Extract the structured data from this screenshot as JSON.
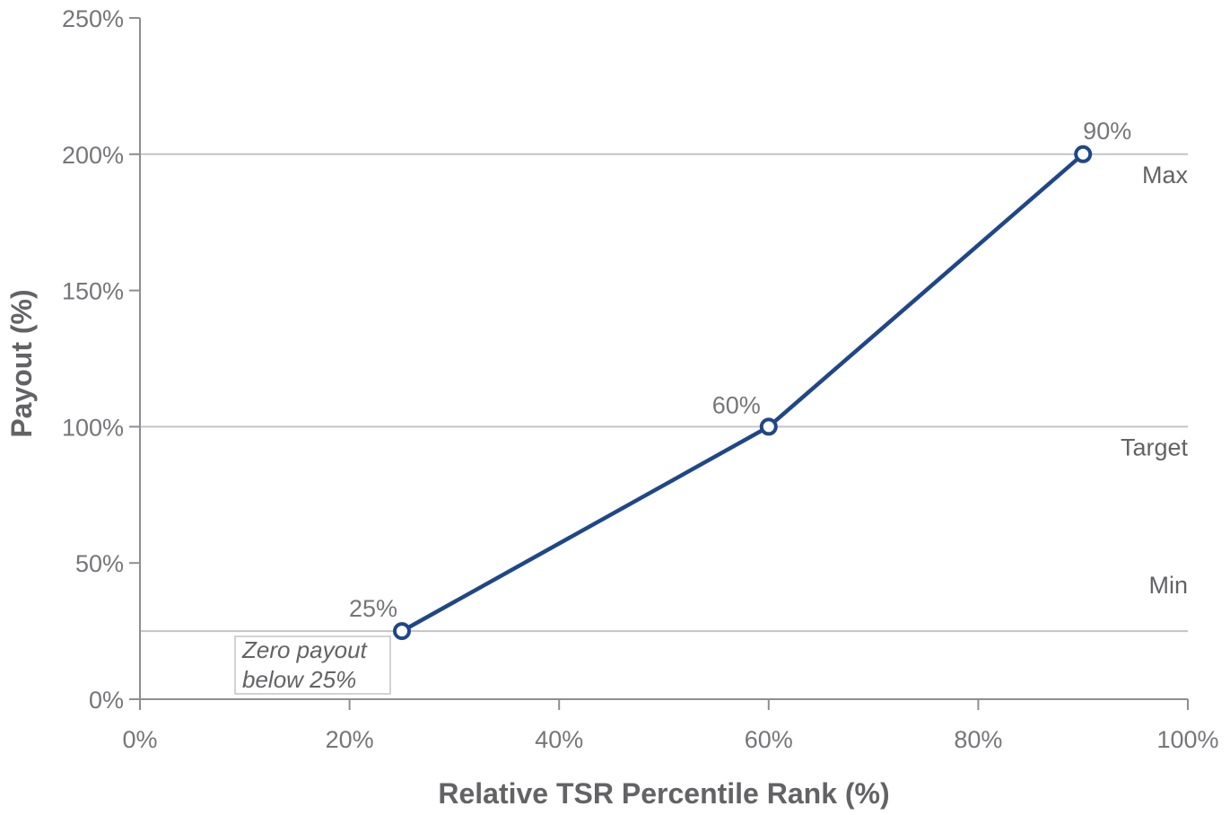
{
  "chart_data": {
    "type": "line",
    "title": "",
    "xlabel": "Relative TSR Percentile Rank (%)",
    "ylabel": "Payout (%)",
    "xlim": [
      0,
      100
    ],
    "ylim": [
      0,
      250
    ],
    "x_ticks": [
      0,
      20,
      40,
      60,
      80,
      100
    ],
    "x_tick_labels": [
      "0%",
      "20%",
      "40%",
      "60%",
      "80%",
      "100%"
    ],
    "y_ticks": [
      0,
      50,
      100,
      150,
      200,
      250
    ],
    "y_tick_labels": [
      "0%",
      "50%",
      "100%",
      "150%",
      "200%",
      "250%"
    ],
    "grid": false,
    "series": [
      {
        "color": "#1f4788",
        "points": [
          {
            "x": 25,
            "y": 25,
            "label": "25%"
          },
          {
            "x": 60,
            "y": 100,
            "label": "60%"
          },
          {
            "x": 90,
            "y": 200,
            "label": "90%"
          }
        ]
      }
    ],
    "reference_lines": [
      {
        "y": 200,
        "label": "Max"
      },
      {
        "y": 100,
        "label": "Target"
      },
      {
        "y": 25,
        "label": "Min"
      }
    ],
    "annotations": [
      {
        "lines": [
          "Zero payout",
          "below 25%"
        ]
      }
    ],
    "colors": {
      "line": "#1f4788",
      "axis": "#8e8e92",
      "reference": "#c4c4c4",
      "text": "#76767a"
    }
  }
}
